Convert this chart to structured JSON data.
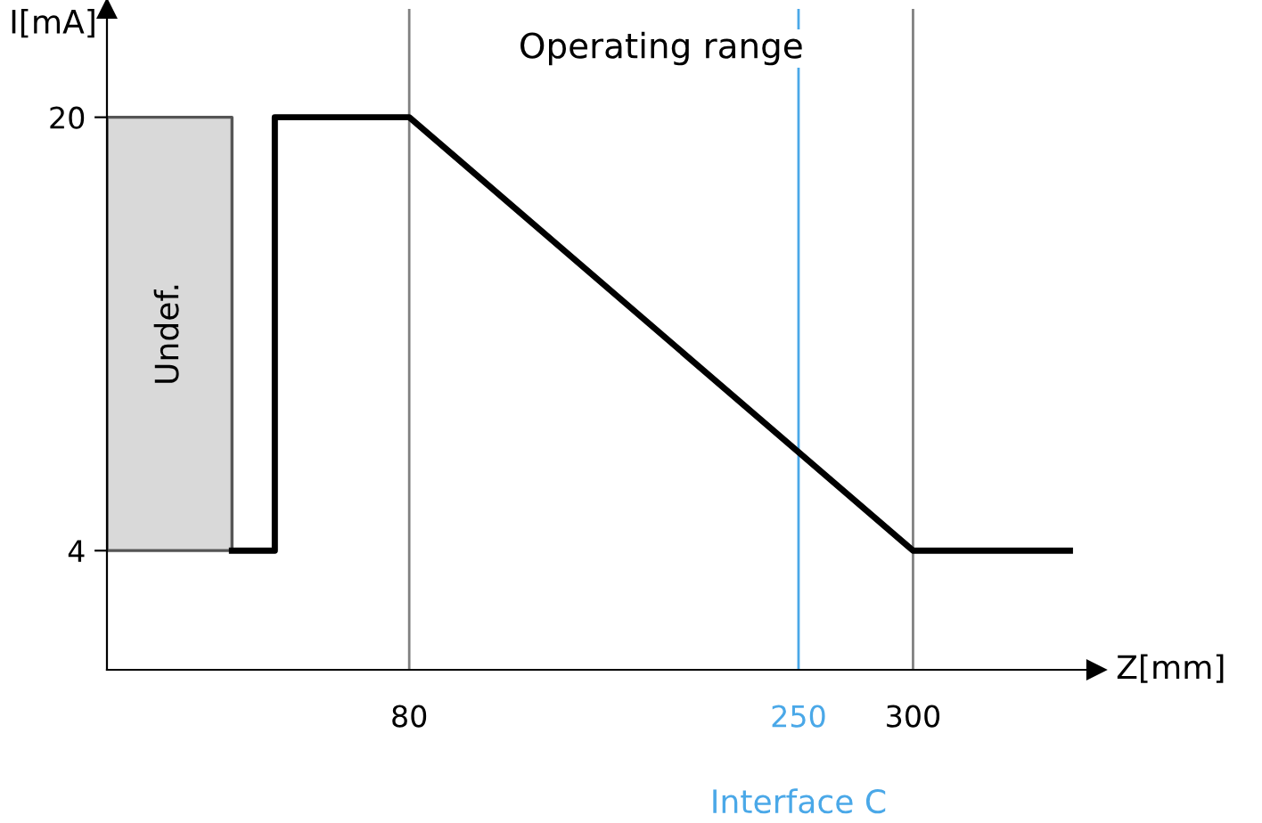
{
  "chart_data": {
    "type": "line",
    "xlabel": "Z[mm]",
    "ylabel": "I[mA]",
    "xlim": [
      -52,
      380
    ],
    "ylim": [
      -0.4,
      24
    ],
    "xticks": [
      80,
      250,
      300
    ],
    "yticks": [
      4,
      20
    ],
    "grid": false,
    "series": [
      {
        "x": [
          2.6,
          21.3,
          21.3,
          80,
          300,
          368.5
        ],
        "values": [
          4,
          4,
          20,
          20,
          4,
          4
        ],
        "color": "#000000"
      }
    ],
    "bands": [
      {
        "axis": "x",
        "from": -52,
        "to": 2.6,
        "label": "Undef.",
        "color": "#d9d9d9"
      }
    ],
    "ref_lines": [
      {
        "axis": "x",
        "value": 80,
        "color": "#808080"
      },
      {
        "axis": "x",
        "value": 250,
        "label": "Interface C",
        "color": "#4aa8e8"
      },
      {
        "axis": "x",
        "value": 300,
        "color": "#808080"
      }
    ],
    "annotations": [
      "Operating range"
    ]
  }
}
